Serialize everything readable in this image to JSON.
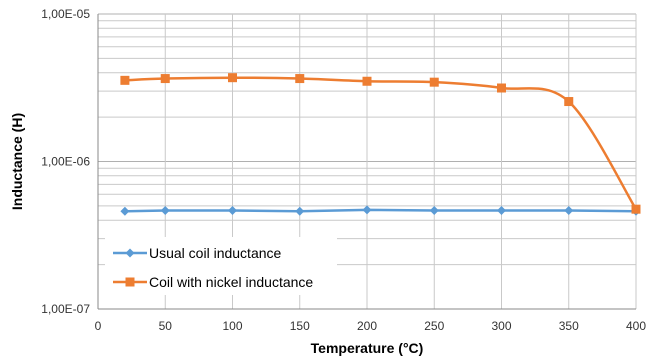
{
  "chart_data": {
    "type": "line",
    "title": "",
    "xlabel": "Temperature (°C)",
    "ylabel": "Inductance (H)",
    "xlim": [
      0,
      400
    ],
    "ylim": [
      1e-07,
      1e-05
    ],
    "yscale": "log",
    "x_ticks": [
      0,
      50,
      100,
      150,
      200,
      250,
      300,
      350,
      400
    ],
    "x_tick_labels": [
      "0",
      "50",
      "100",
      "150",
      "200",
      "250",
      "300",
      "350",
      "400"
    ],
    "y_tick_values": [
      1e-07,
      1e-06,
      1e-05
    ],
    "y_tick_labels": [
      "1,00E-07",
      "1,00E-06",
      "1,00E-05"
    ],
    "grid": "horizontal log gridlines",
    "legend_position": "bottom-left",
    "series": [
      {
        "name": "Usual coil inductance",
        "color": "#5b9bd5",
        "marker": "diamond",
        "smooth": false,
        "x": [
          20,
          50,
          100,
          150,
          200,
          250,
          300,
          350,
          400
        ],
        "values": [
          4.6e-07,
          4.65e-07,
          4.65e-07,
          4.6e-07,
          4.7e-07,
          4.65e-07,
          4.65e-07,
          4.65e-07,
          4.6e-07
        ]
      },
      {
        "name": "Coil with nickel inductance",
        "color": "#ed7d31",
        "marker": "square",
        "smooth": true,
        "x": [
          20,
          50,
          100,
          150,
          200,
          250,
          300,
          350,
          400
        ],
        "values": [
          3.55e-06,
          3.65e-06,
          3.7e-06,
          3.65e-06,
          3.5e-06,
          3.45e-06,
          3.15e-06,
          2.55e-06,
          4.75e-07
        ]
      }
    ]
  }
}
